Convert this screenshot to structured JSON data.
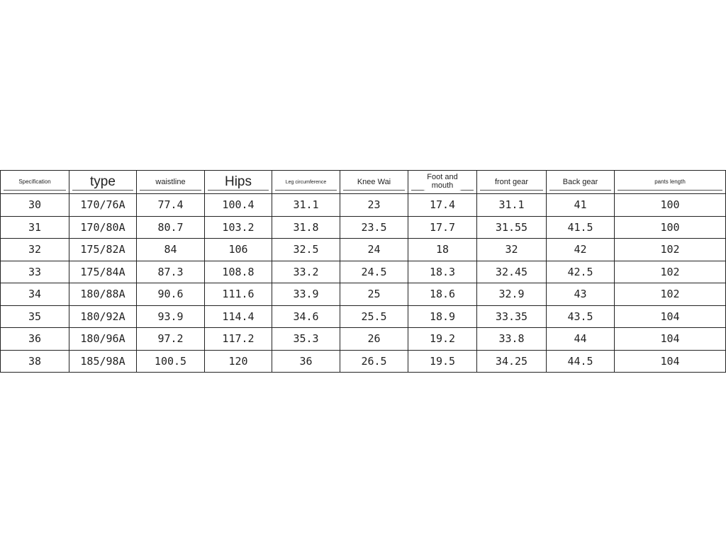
{
  "headers": [
    "Specification",
    "type",
    "waistline",
    "Hips",
    "Leg circumference",
    "Knee Wai",
    "Foot and mouth",
    "front gear",
    "Back gear",
    "pants length"
  ],
  "rows": [
    [
      "30",
      "170/76A",
      "77.4",
      "100.4",
      "31.1",
      "23",
      "17.4",
      "31.1",
      "41",
      "100"
    ],
    [
      "31",
      "170/80A",
      "80.7",
      "103.2",
      "31.8",
      "23.5",
      "17.7",
      "31.55",
      "41.5",
      "100"
    ],
    [
      "32",
      "175/82A",
      "84",
      "106",
      "32.5",
      "24",
      "18",
      "32",
      "42",
      "102"
    ],
    [
      "33",
      "175/84A",
      "87.3",
      "108.8",
      "33.2",
      "24.5",
      "18.3",
      "32.45",
      "42.5",
      "102"
    ],
    [
      "34",
      "180/88A",
      "90.6",
      "111.6",
      "33.9",
      "25",
      "18.6",
      "32.9",
      "43",
      "102"
    ],
    [
      "35",
      "180/92A",
      "93.9",
      "114.4",
      "34.6",
      "25.5",
      "18.9",
      "33.35",
      "43.5",
      "104"
    ],
    [
      "36",
      "180/96A",
      "97.2",
      "117.2",
      "35.3",
      "26",
      "19.2",
      "33.8",
      "44",
      "104"
    ],
    [
      "38",
      "185/98A",
      "100.5",
      "120",
      "36",
      "26.5",
      "19.5",
      "34.25",
      "44.5",
      "104"
    ]
  ]
}
